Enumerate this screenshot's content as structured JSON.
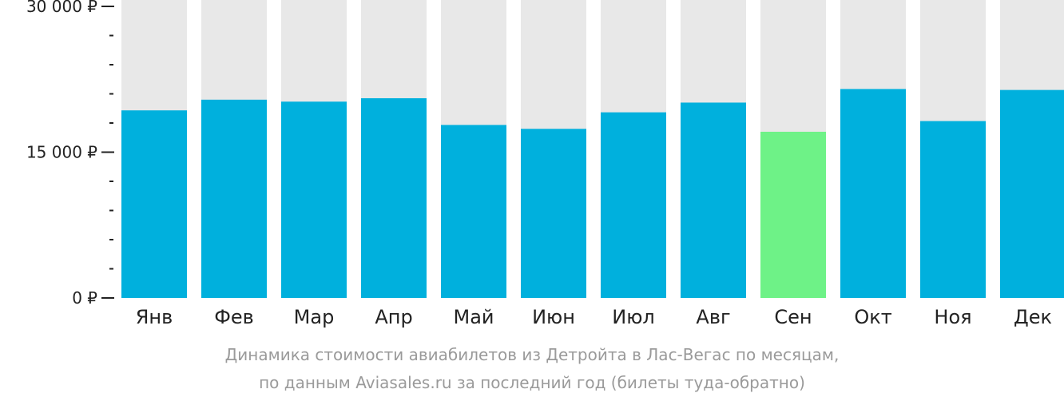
{
  "chart_data": {
    "type": "bar",
    "categories": [
      "Янв",
      "Фев",
      "Мар",
      "Апр",
      "Май",
      "Июн",
      "Июл",
      "Авг",
      "Сен",
      "Окт",
      "Ноя",
      "Дек"
    ],
    "values": [
      19300,
      20400,
      20200,
      20550,
      17800,
      17400,
      19100,
      20100,
      17100,
      21500,
      18200,
      21400
    ],
    "highlight_index": 8,
    "ylim": [
      0,
      30000
    ],
    "yticks": [
      {
        "value": 0,
        "label": "0 ₽"
      },
      {
        "value": 15000,
        "label": "15 000 ₽"
      },
      {
        "value": 30000,
        "label": "30 000 ₽"
      }
    ],
    "minor_tick_step": 3000,
    "title_line1": "Динамика стоимости авиабилетов из Детройта в Лас-Вегас по месяцам,",
    "title_line2": "по данным Aviasales.ru за последний год (билеты туда-обратно)",
    "colors": {
      "bar": "#00b0dd",
      "bar_highlight": "#6ef287",
      "bar_background": "#e8e8e8",
      "axis": "#222222",
      "caption": "#9a9a9a"
    }
  }
}
